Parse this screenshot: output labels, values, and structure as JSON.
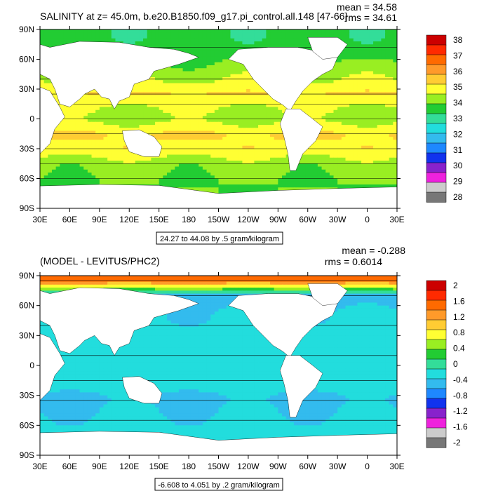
{
  "chart_data": [
    {
      "type": "heatmap",
      "title": "SALINITY at z=  45.0m, b.e20.B1850.f09_g17.pi_control.all.148 [47-66]",
      "stats": [
        "mean = 34.58",
        "rms = 34.61"
      ],
      "x_ticks": [
        "30E",
        "60E",
        "90E",
        "120E",
        "150E",
        "180",
        "150W",
        "120W",
        "90W",
        "60W",
        "30W",
        "0",
        "30E"
      ],
      "y_ticks": [
        "90N",
        "60N",
        "30N",
        "0",
        "30S",
        "60S",
        "90S"
      ],
      "contour_info": "24.27 to 44.08 by .5 gram/kilogram",
      "colorbar": {
        "labels": [
          "38",
          "37",
          "36",
          "35",
          "34",
          "33",
          "32",
          "31",
          "30",
          "29",
          "28"
        ],
        "colors": [
          "#cc0000",
          "#ff2a00",
          "#ff6a00",
          "#ff9a2a",
          "#ffcc33",
          "#ffff33",
          "#99ee22",
          "#22cc33",
          "#33dd99",
          "#22dddd",
          "#33bbee",
          "#1e88ff",
          "#1133ee",
          "#8822cc",
          "#ee22dd",
          "#cccccc",
          "#777777"
        ]
      },
      "fields": [
        {
          "lat": 72,
          "value": 33.5
        },
        {
          "lat": 40,
          "value": 34.6
        },
        {
          "lat": 25,
          "value": 35.4
        },
        {
          "lat": 15,
          "value": 34.8
        },
        {
          "lat": 0,
          "value": 34.4
        },
        {
          "lat": -15,
          "value": 35.4
        },
        {
          "lat": -30,
          "value": 35.2
        },
        {
          "lat": -45,
          "value": 34.3
        },
        {
          "lat": -60,
          "value": 34.0
        }
      ]
    },
    {
      "type": "heatmap",
      "title": "(MODEL - LEVITUS/PHC2)",
      "stats": [
        "mean = -0.288",
        "rms = 0.6014"
      ],
      "x_ticks": [
        "30E",
        "60E",
        "90E",
        "120E",
        "150E",
        "180",
        "150W",
        "120W",
        "90W",
        "60W",
        "30W",
        "0",
        "30E"
      ],
      "y_ticks": [
        "90N",
        "60N",
        "30N",
        "0",
        "30S",
        "60S",
        "90S"
      ],
      "contour_info": "-6.608 to 4.051 by .2 gram/kilogram",
      "colorbar": {
        "labels": [
          "2",
          "1.6",
          "1.2",
          "0.8",
          "0.4",
          "0",
          "-0.4",
          "-0.8",
          "-1.2",
          "-1.6",
          "-2"
        ],
        "colors": [
          "#cc0000",
          "#ff2a00",
          "#ff6a00",
          "#ff9a2a",
          "#ffcc33",
          "#ffff33",
          "#99ee22",
          "#22cc33",
          "#33dd99",
          "#22dddd",
          "#33bbee",
          "#1e88ff",
          "#1133ee",
          "#8822cc",
          "#ee22dd",
          "#cccccc",
          "#777777"
        ]
      },
      "fields": [
        {
          "lat": 85,
          "value": 1.6
        },
        {
          "lat": 70,
          "value": -0.5
        },
        {
          "lat": 40,
          "value": -0.3
        },
        {
          "lat": 10,
          "value": -0.25
        },
        {
          "lat": -15,
          "value": -0.3
        },
        {
          "lat": -35,
          "value": -0.45
        },
        {
          "lat": -55,
          "value": -0.35
        }
      ]
    }
  ]
}
